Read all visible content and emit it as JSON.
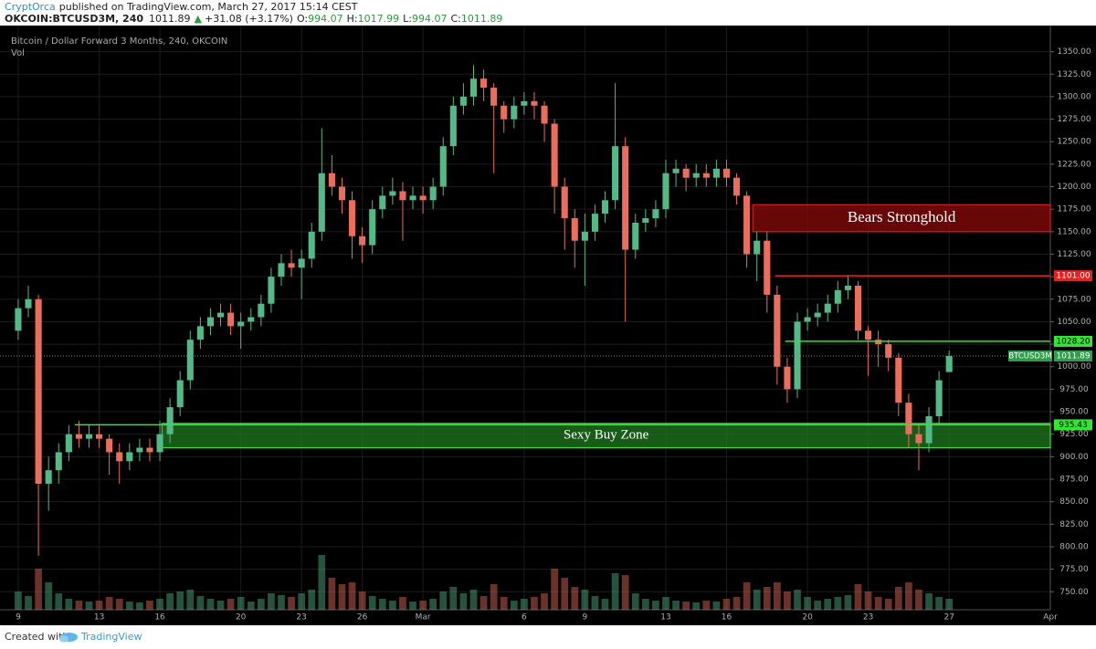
{
  "header": {
    "author": "CryptOrca",
    "published": "published on TradingView.com, March 27, 2017 15:14 CEST",
    "symbol": "OKCOIN:BTCUSD3M, 240",
    "last": "1011.89",
    "arrow": "▲",
    "change": "+31.08 (+3.17%)",
    "ohlc": [
      {
        "key": "O:",
        "value": "994.07"
      },
      {
        "key": "H:",
        "value": "1017.99"
      },
      {
        "key": "L:",
        "value": "994.07"
      },
      {
        "key": "C:",
        "value": "1011.89"
      }
    ]
  },
  "footer": {
    "created": "Created with",
    "brand": "TradingView"
  },
  "chart_data": {
    "type": "candlestick",
    "title": "Bitcoin / Dollar Forward 3 Months, 240, OKCOIN",
    "volume_label": "Vol",
    "up_color": "#53b987",
    "down_color": "#eb6e5c",
    "grid": true,
    "xlim": [
      -0.9,
      51
    ],
    "ylim": [
      730,
      1379
    ],
    "xticks": [
      {
        "value": 0,
        "label": "9"
      },
      {
        "value": 4,
        "label": "13"
      },
      {
        "value": 7,
        "label": "16"
      },
      {
        "value": 11,
        "label": "20"
      },
      {
        "value": 14,
        "label": "23"
      },
      {
        "value": 17,
        "label": "26"
      },
      {
        "value": 20,
        "label": "Mar"
      },
      {
        "value": 25,
        "label": "6"
      },
      {
        "value": 28,
        "label": "9"
      },
      {
        "value": 32,
        "label": "13"
      },
      {
        "value": 35,
        "label": "16"
      },
      {
        "value": 39,
        "label": "20"
      },
      {
        "value": 42,
        "label": "23"
      },
      {
        "value": 46,
        "label": "27"
      },
      {
        "value": 51,
        "label": "Apr"
      }
    ],
    "yticks": [
      {
        "value": 750,
        "label": "750.00"
      },
      {
        "value": 775,
        "label": "775.00"
      },
      {
        "value": 800,
        "label": "800.00"
      },
      {
        "value": 825,
        "label": "825.00"
      },
      {
        "value": 850,
        "label": "850.00"
      },
      {
        "value": 875,
        "label": "875.00"
      },
      {
        "value": 900,
        "label": "900.00"
      },
      {
        "value": 925,
        "label": "925.00"
      },
      {
        "value": 950,
        "label": "950.00"
      },
      {
        "value": 975,
        "label": "975.00"
      },
      {
        "value": 1000,
        "label": "1000.00"
      },
      {
        "value": 1025,
        "label": "1025.00"
      },
      {
        "value": 1050,
        "label": "1050.00"
      },
      {
        "value": 1075,
        "label": "1075.00"
      },
      {
        "value": 1100,
        "label": "1100.00"
      },
      {
        "value": 1125,
        "label": "1125.00"
      },
      {
        "value": 1150,
        "label": "1150.00"
      },
      {
        "value": 1175,
        "label": "1175.00"
      },
      {
        "value": 1200,
        "label": "1200.00"
      },
      {
        "value": 1225,
        "label": "1225.00"
      },
      {
        "value": 1250,
        "label": "1250.00"
      },
      {
        "value": 1275,
        "label": "1275.00"
      },
      {
        "value": 1300,
        "label": "1300.00"
      },
      {
        "value": 1325,
        "label": "1325.00"
      },
      {
        "value": 1350,
        "label": "1350.00"
      }
    ],
    "x": [
      0,
      0.5,
      1,
      1.5,
      2,
      2.5,
      3,
      3.5,
      4,
      4.5,
      5,
      5.5,
      6,
      6.5,
      7,
      7.5,
      8,
      8.5,
      9,
      9.5,
      10,
      10.5,
      11,
      11.5,
      12,
      12.5,
      13,
      13.5,
      14,
      14.5,
      15,
      15.5,
      16,
      16.5,
      17,
      17.5,
      18,
      18.5,
      19,
      19.5,
      20,
      20.5,
      21,
      21.5,
      22,
      22.5,
      23,
      23.5,
      24,
      24.5,
      25,
      25.5,
      26,
      26.5,
      27,
      27.5,
      28,
      28.5,
      29,
      29.5,
      30,
      30.5,
      31,
      31.5,
      32,
      32.5,
      33,
      33.5,
      34,
      34.5,
      35,
      35.5,
      36,
      36.5,
      37,
      37.5,
      38,
      38.5,
      39,
      39.5,
      40,
      40.5,
      41,
      41.5,
      42,
      42.5,
      43,
      43.5,
      44,
      44.5,
      45,
      45.5,
      46
    ],
    "open": [
      1040,
      1065,
      1075,
      870,
      885,
      905,
      925,
      920,
      925,
      920,
      905,
      895,
      905,
      910,
      905,
      925,
      955,
      985,
      1030,
      1045,
      1055,
      1060,
      1045,
      1050,
      1055,
      1070,
      1100,
      1115,
      1110,
      1120,
      1150,
      1215,
      1200,
      1185,
      1145,
      1135,
      1175,
      1190,
      1195,
      1185,
      1190,
      1185,
      1200,
      1245,
      1290,
      1300,
      1320,
      1310,
      1290,
      1275,
      1290,
      1295,
      1290,
      1270,
      1200,
      1165,
      1140,
      1150,
      1170,
      1185,
      1245,
      1130,
      1160,
      1165,
      1175,
      1215,
      1220,
      1210,
      1215,
      1210,
      1220,
      1210,
      1190,
      1125,
      1140,
      1080,
      1000,
      975,
      1050,
      1055,
      1060,
      1070,
      1085,
      1090,
      1040,
      1030,
      1025,
      1010,
      960,
      925,
      915,
      945,
      994.07
    ],
    "high": [
      1075,
      1090,
      1080,
      900,
      915,
      935,
      940,
      935,
      935,
      925,
      915,
      915,
      920,
      920,
      940,
      965,
      995,
      1040,
      1055,
      1065,
      1070,
      1070,
      1060,
      1065,
      1080,
      1110,
      1125,
      1130,
      1130,
      1160,
      1265,
      1235,
      1210,
      1195,
      1155,
      1185,
      1200,
      1210,
      1205,
      1200,
      1200,
      1210,
      1255,
      1300,
      1315,
      1335,
      1330,
      1315,
      1295,
      1300,
      1305,
      1305,
      1295,
      1275,
      1210,
      1175,
      1170,
      1180,
      1195,
      1315,
      1255,
      1170,
      1175,
      1185,
      1230,
      1230,
      1225,
      1225,
      1225,
      1230,
      1230,
      1215,
      1195,
      1150,
      1150,
      1090,
      1010,
      1060,
      1065,
      1070,
      1080,
      1095,
      1102,
      1095,
      1045,
      1040,
      1030,
      1015,
      970,
      935,
      955,
      995,
      1017.99
    ],
    "low": [
      1030,
      1055,
      790,
      840,
      870,
      895,
      910,
      910,
      910,
      880,
      870,
      885,
      895,
      895,
      895,
      915,
      945,
      975,
      1020,
      1035,
      1045,
      1035,
      1020,
      1040,
      1045,
      1060,
      1090,
      1100,
      1075,
      1110,
      1140,
      1190,
      1170,
      1120,
      1115,
      1125,
      1165,
      1180,
      1140,
      1175,
      1170,
      1175,
      1190,
      1235,
      1280,
      1290,
      1295,
      1215,
      1260,
      1265,
      1280,
      1275,
      1250,
      1170,
      1130,
      1110,
      1090,
      1140,
      1160,
      1175,
      1050,
      1120,
      1150,
      1155,
      1165,
      1200,
      1195,
      1200,
      1200,
      1200,
      1200,
      1180,
      1110,
      1095,
      1060,
      980,
      960,
      965,
      1040,
      1045,
      1050,
      1060,
      1075,
      1030,
      990,
      1000,
      995,
      945,
      910,
      885,
      905,
      935,
      994.07
    ],
    "close": [
      1065,
      1075,
      870,
      885,
      905,
      925,
      920,
      925,
      920,
      905,
      895,
      905,
      910,
      905,
      925,
      955,
      985,
      1030,
      1045,
      1055,
      1060,
      1045,
      1050,
      1055,
      1070,
      1100,
      1115,
      1110,
      1120,
      1150,
      1215,
      1200,
      1185,
      1145,
      1135,
      1175,
      1190,
      1195,
      1185,
      1190,
      1185,
      1200,
      1245,
      1290,
      1300,
      1320,
      1310,
      1290,
      1275,
      1290,
      1295,
      1290,
      1270,
      1200,
      1165,
      1140,
      1150,
      1170,
      1185,
      1245,
      1130,
      1160,
      1165,
      1175,
      1215,
      1220,
      1210,
      1215,
      1210,
      1220,
      1210,
      1190,
      1125,
      1140,
      1080,
      1000,
      975,
      1050,
      1055,
      1060,
      1070,
      1085,
      1090,
      1040,
      1030,
      1025,
      1010,
      960,
      925,
      915,
      945,
      985,
      1011.89
    ],
    "volume": [
      20,
      15,
      45,
      30,
      18,
      12,
      10,
      9,
      10,
      14,
      12,
      9,
      8,
      10,
      12,
      18,
      20,
      22,
      15,
      12,
      10,
      12,
      14,
      9,
      12,
      18,
      16,
      14,
      18,
      22,
      60,
      35,
      28,
      30,
      20,
      15,
      12,
      10,
      14,
      9,
      10,
      12,
      20,
      25,
      18,
      22,
      15,
      28,
      14,
      10,
      12,
      14,
      18,
      45,
      35,
      25,
      22,
      15,
      12,
      40,
      38,
      18,
      12,
      10,
      14,
      10,
      9,
      8,
      10,
      9,
      12,
      14,
      30,
      22,
      25,
      30,
      20,
      22,
      14,
      10,
      12,
      14,
      16,
      28,
      20,
      14,
      12,
      25,
      30,
      22,
      18,
      14,
      12
    ],
    "volume_lim": [
      0,
      70
    ],
    "zones": [
      {
        "label": "Bears Stronghold",
        "low": 1150,
        "high": 1180,
        "start": 36.3,
        "end": 51,
        "color": "#8b0a0a"
      },
      {
        "label": "Sexy Buy Zone",
        "low": 910,
        "high": 937,
        "start": 7.1,
        "end": 51,
        "color": "#1f7a1f"
      }
    ],
    "levels": [
      {
        "value": 1101,
        "label": "1101.00",
        "start": 37.4,
        "color": "#e82020"
      },
      {
        "value": 1028.2,
        "label": "1028.20",
        "start": 37.9,
        "color": "#33e633"
      },
      {
        "value": 935.43,
        "label": "935.43",
        "start": 2.8,
        "color": "#33e633"
      }
    ],
    "last": {
      "value": 1011.89,
      "label": "1011.89",
      "tag": "BTCUSD3M",
      "color": "#2e9e4a"
    }
  }
}
